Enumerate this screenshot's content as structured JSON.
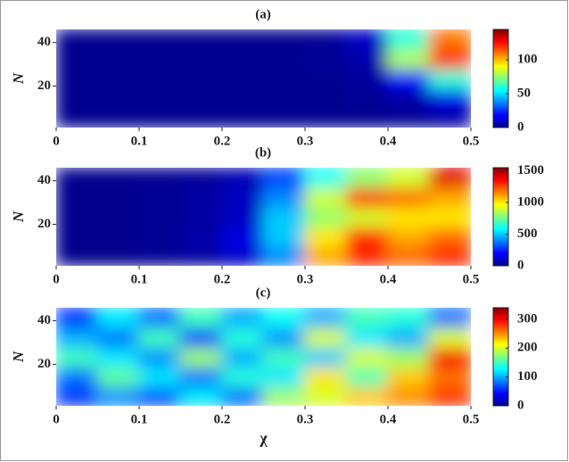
{
  "chart_data": [
    {
      "type": "heatmap",
      "title": "(a)",
      "ylabel": "N",
      "colormap": "jet",
      "x": [
        0.025,
        0.075,
        0.125,
        0.175,
        0.225,
        0.275,
        0.325,
        0.375,
        0.425,
        0.475
      ],
      "y": [
        5.5,
        14.5,
        23.5,
        32.5,
        41.5
      ],
      "values": [
        [
          2,
          2,
          2,
          2,
          2,
          2,
          2,
          2,
          3,
          5
        ],
        [
          2,
          2,
          2,
          2,
          2,
          2,
          2,
          3,
          5,
          15
        ],
        [
          2,
          2,
          2,
          2,
          2,
          2,
          2,
          4,
          20,
          60
        ],
        [
          2,
          2,
          2,
          2,
          2,
          2,
          3,
          6,
          80,
          120
        ],
        [
          2,
          2,
          2,
          2,
          2,
          2,
          3,
          10,
          60,
          110
        ]
      ],
      "xlim": [
        0,
        0.5
      ],
      "ylim": [
        1,
        46
      ],
      "xticks": [
        0,
        0.1,
        0.2,
        0.3,
        0.4,
        0.5
      ],
      "yticks": [
        20,
        40
      ],
      "clim": [
        0,
        145
      ],
      "cticks": [
        0,
        50,
        100
      ]
    },
    {
      "type": "heatmap",
      "title": "(b)",
      "ylabel": "N",
      "colormap": "jet",
      "x": [
        0.025,
        0.075,
        0.125,
        0.175,
        0.225,
        0.275,
        0.325,
        0.375,
        0.425,
        0.475
      ],
      "y": [
        5.5,
        14.5,
        23.5,
        32.5,
        41.5
      ],
      "values": [
        [
          20,
          20,
          30,
          50,
          120,
          400,
          1100,
          1300,
          1200,
          1300
        ],
        [
          20,
          20,
          30,
          60,
          150,
          500,
          1000,
          1300,
          1100,
          1200
        ],
        [
          20,
          20,
          30,
          50,
          100,
          500,
          800,
          900,
          1000,
          1000
        ],
        [
          20,
          20,
          30,
          50,
          100,
          400,
          900,
          1300,
          1200,
          1100
        ],
        [
          20,
          20,
          30,
          40,
          80,
          300,
          600,
          800,
          900,
          1400
        ]
      ],
      "xlim": [
        0,
        0.5
      ],
      "ylim": [
        1,
        46
      ],
      "xticks": [
        0,
        0.1,
        0.2,
        0.3,
        0.4,
        0.5
      ],
      "yticks": [
        20,
        40
      ],
      "clim": [
        0,
        1550
      ],
      "cticks": [
        0,
        500,
        1000,
        1500
      ]
    },
    {
      "type": "heatmap",
      "title": "(c)",
      "ylabel": "N",
      "xlabel": "χ",
      "colormap": "jet",
      "x": [
        0.025,
        0.075,
        0.125,
        0.175,
        0.225,
        0.275,
        0.325,
        0.375,
        0.425,
        0.475
      ],
      "y": [
        5.5,
        14.5,
        23.5,
        32.5,
        41.5
      ],
      "values": [
        [
          60,
          90,
          70,
          120,
          80,
          180,
          200,
          230,
          250,
          280
        ],
        [
          80,
          160,
          120,
          80,
          140,
          120,
          220,
          150,
          230,
          260
        ],
        [
          150,
          120,
          90,
          180,
          100,
          150,
          110,
          200,
          180,
          300
        ],
        [
          100,
          80,
          150,
          60,
          140,
          90,
          200,
          120,
          100,
          200
        ],
        [
          60,
          120,
          80,
          150,
          100,
          130,
          100,
          150,
          140,
          80
        ]
      ],
      "xlim": [
        0,
        0.5
      ],
      "ylim": [
        1,
        46
      ],
      "xticks": [
        0,
        0.1,
        0.2,
        0.3,
        0.4,
        0.5
      ],
      "yticks": [
        20,
        40
      ],
      "clim": [
        0,
        340
      ],
      "cticks": [
        0,
        100,
        200,
        300
      ]
    }
  ]
}
